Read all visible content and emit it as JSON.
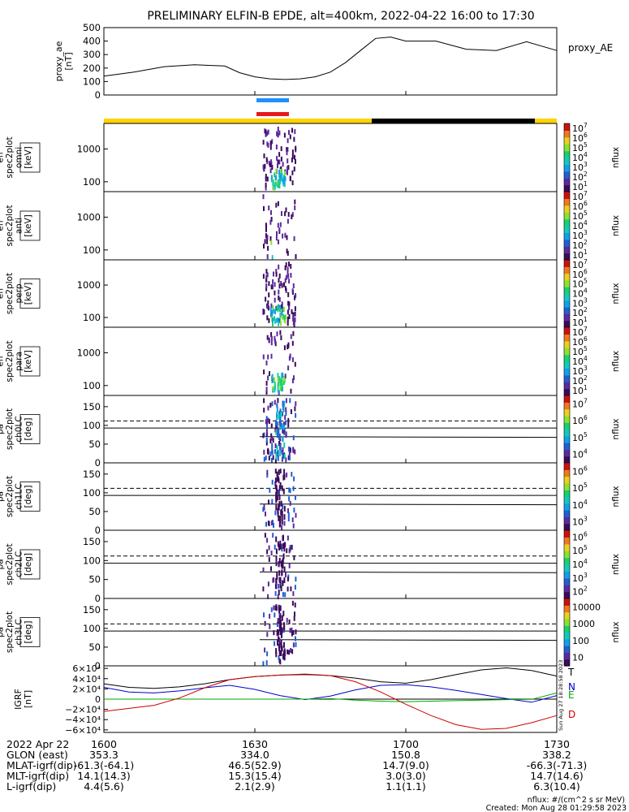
{
  "title": "PRELIMINARY ELFIN-B EPDE, alt=400km, 2022-04-22 16:00 to 17:30",
  "colors": {
    "blue_bar": "#1e90ff",
    "red_bar": "#e41a1c",
    "sun": "#ffd400",
    "shadow": "#000000",
    "trace": "#000000",
    "grid": "#000000"
  },
  "chart_data": [
    {
      "type": "line",
      "panel": "proxy_ae",
      "ylabel_lines": [
        "proxy_ae",
        "[nT]"
      ],
      "legend": "proxy_AE",
      "ylim": [
        0,
        500
      ],
      "yticks": [
        "0",
        "100",
        "200",
        "300",
        "400",
        "500"
      ],
      "x_minutes": [
        0,
        6,
        12,
        18,
        24,
        27,
        30,
        33,
        36,
        39,
        42,
        45,
        48,
        51,
        54,
        57,
        60,
        66,
        72,
        78,
        84,
        90
      ],
      "values": [
        140,
        170,
        210,
        225,
        215,
        165,
        135,
        120,
        115,
        120,
        135,
        170,
        240,
        330,
        420,
        430,
        400,
        400,
        340,
        330,
        395,
        330
      ]
    },
    {
      "type": "heatmap",
      "panel": "spec2plot_en_omni",
      "ylabel_lines": [
        "elb",
        "pef",
        "en",
        "spec2plot",
        "omni",
        "[keV]"
      ],
      "ylabel_boxed": [
        "omni",
        "[keV]"
      ],
      "yticks": [
        "100",
        "1000"
      ],
      "ylim": [
        50,
        6000
      ],
      "log_y": true,
      "colorbar_ticks_exp": [
        "1",
        "2",
        "3",
        "4",
        "5",
        "6",
        "7"
      ],
      "colorbar_label": "nflux"
    },
    {
      "type": "heatmap",
      "panel": "spec2plot_en_anti",
      "ylabel_lines": [
        "elb",
        "pef",
        "en",
        "spec2plot",
        "anti",
        "[keV]"
      ],
      "ylabel_boxed": [
        "anti",
        "[keV]"
      ],
      "yticks": [
        "100",
        "1000"
      ],
      "ylim": [
        50,
        6000
      ],
      "log_y": true,
      "colorbar_ticks_exp": [
        "1",
        "2",
        "3",
        "4",
        "5",
        "6",
        "7"
      ],
      "colorbar_label": "nflux"
    },
    {
      "type": "heatmap",
      "panel": "spec2plot_en_perp",
      "ylabel_lines": [
        "elb",
        "pef",
        "en",
        "spec2plot",
        "perp",
        "[keV]"
      ],
      "ylabel_boxed": [
        "perp",
        "[keV]"
      ],
      "yticks": [
        "100",
        "1000"
      ],
      "ylim": [
        50,
        6000
      ],
      "log_y": true,
      "colorbar_ticks_exp": [
        "1",
        "2",
        "3",
        "4",
        "5",
        "6",
        "7"
      ],
      "colorbar_label": "nflux"
    },
    {
      "type": "heatmap",
      "panel": "spec2plot_en_para",
      "ylabel_lines": [
        "elb",
        "pef",
        "en",
        "spec2plot",
        "para",
        "[keV]"
      ],
      "ylabel_boxed": [
        "para",
        "[keV]"
      ],
      "yticks": [
        "100",
        "1000"
      ],
      "ylim": [
        50,
        6000
      ],
      "log_y": true,
      "colorbar_ticks_exp": [
        "1",
        "2",
        "3",
        "4",
        "5",
        "6",
        "7"
      ],
      "colorbar_label": "nflux"
    },
    {
      "type": "heatmap",
      "panel": "spec2plot_ch0LC",
      "ylabel_lines": [
        "elb",
        "pef",
        "pa",
        "spec2plot",
        "ch0LC",
        "[deg]"
      ],
      "ylabel_boxed": [
        "ch0LC",
        "[deg]"
      ],
      "yticks": [
        "0",
        "50",
        "100",
        "150"
      ],
      "ylim": [
        0,
        180
      ],
      "colorbar_ticks_exp": [
        "4",
        "5",
        "6",
        "7"
      ],
      "colorbar_label": "nflux"
    },
    {
      "type": "heatmap",
      "panel": "spec2plot_ch1LC",
      "ylabel_lines": [
        "elb",
        "pef",
        "pa",
        "spec2plot",
        "ch1LC",
        "[deg]"
      ],
      "ylabel_boxed": [
        "ch1LC",
        "[deg]"
      ],
      "yticks": [
        "0",
        "50",
        "100",
        "150"
      ],
      "ylim": [
        0,
        180
      ],
      "colorbar_ticks_exp": [
        "3",
        "4",
        "5",
        "6"
      ],
      "colorbar_label": "nflux"
    },
    {
      "type": "heatmap",
      "panel": "spec2plot_ch2LC",
      "ylabel_lines": [
        "elb",
        "pef",
        "pa",
        "spec2plot",
        "ch2LC",
        "[deg]"
      ],
      "ylabel_boxed": [
        "ch2LC",
        "[deg]"
      ],
      "yticks": [
        "0",
        "50",
        "100",
        "150"
      ],
      "ylim": [
        0,
        180
      ],
      "colorbar_ticks_exp": [
        "2",
        "3",
        "4",
        "5",
        "6"
      ],
      "colorbar_label": "nflux"
    },
    {
      "type": "heatmap",
      "panel": "spec2plot_ch3LC",
      "ylabel_lines": [
        "elb",
        "pef",
        "pa",
        "spec2plot",
        "ch3LC",
        "[deg]"
      ],
      "ylabel_boxed": [
        "ch3LC",
        "[deg]"
      ],
      "yticks": [
        "0",
        "50",
        "100",
        "150"
      ],
      "ylim": [
        0,
        180
      ],
      "colorbar_ticks": [
        "10",
        "100",
        "1000",
        "10000"
      ],
      "colorbar_label": "nflux"
    },
    {
      "type": "line",
      "panel": "IGRF",
      "ylabel_lines": [
        "IGRF",
        "[nT]"
      ],
      "yticks": [
        "6×10⁴",
        "4×10⁴",
        "2×10⁴",
        "0",
        "−2×10⁴",
        "−4×10⁴",
        "−6×10⁴"
      ],
      "ylim": [
        -65000,
        65000
      ],
      "x_minutes": [
        0,
        5,
        10,
        15,
        20,
        25,
        30,
        35,
        40,
        45,
        50,
        55,
        60,
        65,
        70,
        75,
        80,
        85,
        90
      ],
      "series": [
        {
          "name": "T",
          "color": "#000000",
          "values": [
            30000,
            23000,
            21000,
            24000,
            30000,
            38000,
            44000,
            47000,
            48000,
            46000,
            41000,
            34000,
            31000,
            38000,
            48000,
            57000,
            61000,
            56000,
            45000
          ]
        },
        {
          "name": "N",
          "color": "#0000cc",
          "values": [
            23000,
            14000,
            12000,
            16000,
            22000,
            27000,
            19000,
            7000,
            -1000,
            6000,
            18000,
            27000,
            28000,
            24000,
            17000,
            9000,
            1000,
            -6000,
            7000
          ]
        },
        {
          "name": "E",
          "color": "#00aa00",
          "values": [
            0,
            0,
            0,
            0,
            0,
            0,
            0,
            0,
            0,
            1000,
            -2000,
            -4000,
            -5000,
            -4000,
            -3000,
            -2000,
            -1000,
            -500,
            12000
          ]
        },
        {
          "name": "D",
          "color": "#cc0000",
          "values": [
            -24000,
            -18000,
            -12000,
            2000,
            22000,
            38000,
            44000,
            47000,
            49000,
            46000,
            34000,
            14000,
            -10000,
            -32000,
            -50000,
            -59000,
            -57000,
            -46000,
            -32000
          ]
        }
      ]
    }
  ],
  "side_stamp": "Sun Aug 27 18:28:58 2023",
  "colorbar_exp_base": "10",
  "ephem": {
    "date_label": "2022 Apr 22",
    "times": [
      "1600",
      "1630",
      "1700",
      "1730"
    ],
    "rows": [
      {
        "label": "GLON (east)",
        "values": [
          "353.3",
          "334.0",
          "150.8",
          "338.2"
        ]
      },
      {
        "label": "MLAT-igrf(dip)",
        "values": [
          "-61.3(-64.1)",
          "46.5(52.9)",
          "14.7(9.0)",
          "-66.3(-71.3)"
        ]
      },
      {
        "label": "MLT-igrf(dip)",
        "values": [
          "14.1(14.3)",
          "15.3(15.4)",
          "3.0(3.0)",
          "14.7(14.6)"
        ]
      },
      {
        "label": "L-igrf(dip)",
        "values": [
          "4.4(5.6)",
          "2.1(2.9)",
          "1.1(1.1)",
          "6.3(10.4)"
        ]
      }
    ]
  },
  "footer": {
    "units": "nflux: #/(cm^2 s sr MeV)",
    "created": "Created: Mon Aug 28 01:29:58 2023"
  }
}
